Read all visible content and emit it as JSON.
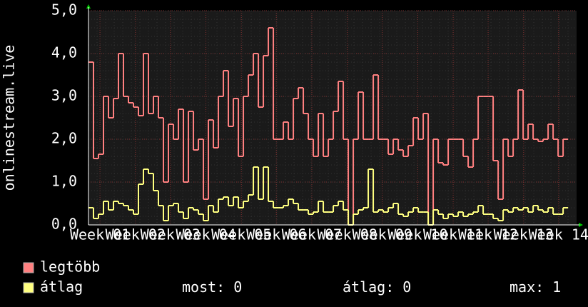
{
  "chart_data": {
    "type": "step-line",
    "y_label": "onlinestream.live",
    "xlim": [
      0,
      97.7
    ],
    "xticks": [
      {
        "value": 2.3,
        "label": "Week 01"
      },
      {
        "value": 9.4,
        "label": "Week 02"
      },
      {
        "value": 16.4,
        "label": "Week 03"
      },
      {
        "value": 23.5,
        "label": "Week 04"
      },
      {
        "value": 30.6,
        "label": "Week 05"
      },
      {
        "value": 37.6,
        "label": "Week 06"
      },
      {
        "value": 44.7,
        "label": "Week 07"
      },
      {
        "value": 51.8,
        "label": "Week 08"
      },
      {
        "value": 58.8,
        "label": "Week 09"
      },
      {
        "value": 65.9,
        "label": "Week 10"
      },
      {
        "value": 73.0,
        "label": "Week 11"
      },
      {
        "value": 80.0,
        "label": "Week 12"
      },
      {
        "value": 87.1,
        "label": "Week 13"
      },
      {
        "value": 94.1,
        "label": "Week 14"
      }
    ],
    "ylim": [
      0,
      5
    ],
    "yticks": [
      {
        "value": 0,
        "label": "0,0"
      },
      {
        "value": 1,
        "label": "1,0"
      },
      {
        "value": 2,
        "label": "2,0"
      },
      {
        "value": 3,
        "label": "3,0"
      },
      {
        "value": 4,
        "label": "4,0"
      },
      {
        "value": 5,
        "label": "5,0"
      }
    ],
    "grid": true,
    "series": [
      {
        "name": "legtöbb",
        "color": "#ff8080",
        "values": [
          3.8,
          1.55,
          1.65,
          3.0,
          2.5,
          2.95,
          4.0,
          3.0,
          2.85,
          2.75,
          2.55,
          4.0,
          2.6,
          3.0,
          2.5,
          1.0,
          2.35,
          2.0,
          2.7,
          1.0,
          2.65,
          1.75,
          2.0,
          0.6,
          2.45,
          1.8,
          3.0,
          3.6,
          2.3,
          2.95,
          1.6,
          3.0,
          3.5,
          4.0,
          2.75,
          3.95,
          4.6,
          2.0,
          2.0,
          2.4,
          2.0,
          2.95,
          3.2,
          2.6,
          2.0,
          1.6,
          2.6,
          1.6,
          2.0,
          2.65,
          3.35,
          2.0,
          0,
          2.0,
          3.1,
          2.0,
          2.0,
          3.5,
          2.0,
          2.0,
          1.65,
          2.0,
          1.75,
          1.6,
          1.85,
          2.5,
          2.0,
          2.6,
          0,
          2.0,
          1.45,
          1.4,
          2.0,
          2.0,
          2.0,
          1.6,
          1.35,
          2.0,
          3.0,
          3.0,
          3.0,
          1.5,
          0.6,
          2.0,
          1.6,
          2.0,
          3.15,
          2.0,
          2.35,
          2.0,
          1.95,
          2.0,
          2.35,
          2.0,
          1.6,
          2.0
        ]
      },
      {
        "name": "átlag",
        "color": "#ffff80",
        "values": [
          0.4,
          0.15,
          0.25,
          0.55,
          0.35,
          0.55,
          0.5,
          0.45,
          0.35,
          0.25,
          0.95,
          1.3,
          1.2,
          0.8,
          0.45,
          0.1,
          0.45,
          0.5,
          0.3,
          0.15,
          0.4,
          0.35,
          0.25,
          0.1,
          0.45,
          0.3,
          0.6,
          0.65,
          0.45,
          0.65,
          0.4,
          0.55,
          0.7,
          1.35,
          0.6,
          1.35,
          0.55,
          0.4,
          0.4,
          0.45,
          0.6,
          0.5,
          0.35,
          0.35,
          0.25,
          0.3,
          0.55,
          0.3,
          0.3,
          0.45,
          0.55,
          0.35,
          0,
          0.25,
          0.35,
          0.4,
          1.3,
          0.3,
          0.35,
          0.3,
          0.4,
          0.5,
          0.25,
          0.2,
          0.3,
          0.4,
          0.3,
          0.3,
          0,
          0.35,
          0.25,
          0.15,
          0.25,
          0.2,
          0.3,
          0.2,
          0.25,
          0.3,
          0.45,
          0.25,
          0.25,
          0.15,
          0.1,
          0.35,
          0.3,
          0.4,
          0.35,
          0.4,
          0.3,
          0.45,
          0.35,
          0.3,
          0.4,
          0.25,
          0.25,
          0.4
        ]
      }
    ],
    "stats": [
      {
        "label": "most:",
        "value": 0
      },
      {
        "label": "átlag:",
        "value": 0
      },
      {
        "label": "max:",
        "value": 1
      }
    ]
  }
}
